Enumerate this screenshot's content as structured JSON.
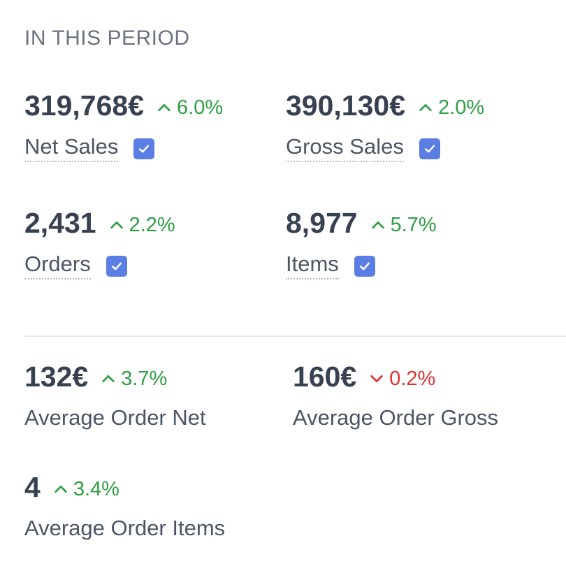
{
  "section": {
    "title": "IN THIS PERIOD"
  },
  "metrics": {
    "net_sales": {
      "value": "319,768€",
      "change": "6.0%",
      "direction": "up",
      "label": "Net Sales",
      "checked": true
    },
    "gross_sales": {
      "value": "390,130€",
      "change": "2.0%",
      "direction": "up",
      "label": "Gross Sales",
      "checked": true
    },
    "orders": {
      "value": "2,431",
      "change": "2.2%",
      "direction": "up",
      "label": "Orders",
      "checked": true
    },
    "items": {
      "value": "8,977",
      "change": "5.7%",
      "direction": "up",
      "label": "Items",
      "checked": true
    },
    "avg_order_net": {
      "value": "132€",
      "change": "3.7%",
      "direction": "up",
      "label": "Average Order Net"
    },
    "avg_order_gross": {
      "value": "160€",
      "change": "0.2%",
      "direction": "down",
      "label": "Average Order Gross"
    },
    "avg_order_items": {
      "value": "4",
      "change": "3.4%",
      "direction": "up",
      "label": "Average Order Items"
    }
  },
  "colors": {
    "positive": "#2f9e44",
    "negative": "#e03131",
    "checkbox": "#5b7ee5"
  },
  "icons": {
    "up": "chevron-up-icon",
    "down": "chevron-down-icon",
    "check": "checkmark-icon"
  }
}
